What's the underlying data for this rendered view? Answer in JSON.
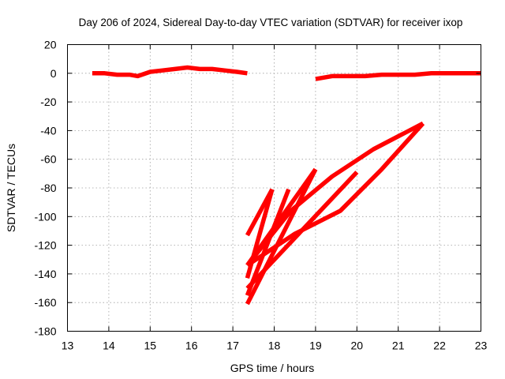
{
  "chart_data": {
    "type": "line",
    "title": "Day 206 of 2024, Sidereal Day-to-day VTEC variation (SDTVAR) for receiver ixop",
    "xlabel": "GPS time / hours",
    "ylabel": "SDTVAR / TECUs",
    "xlim": [
      13,
      23
    ],
    "ylim": [
      -180,
      20
    ],
    "xticks": [
      13,
      14,
      15,
      16,
      17,
      18,
      19,
      20,
      21,
      22,
      23
    ],
    "yticks": [
      -180,
      -160,
      -140,
      -120,
      -100,
      -80,
      -60,
      -40,
      -20,
      0,
      20
    ],
    "grid": true,
    "legend": "none",
    "colors": {
      "series": "#ff0000",
      "axis": "#000000",
      "grid": "#a0a0a0"
    },
    "series": [
      {
        "x": [
          13.6,
          13.9,
          14.2,
          14.5,
          14.7,
          15.0,
          15.3,
          15.6,
          15.9,
          16.2,
          16.5,
          16.8,
          17.1,
          17.35
        ],
        "y": [
          0,
          0,
          -1,
          -1,
          -2,
          1,
          2,
          3,
          4,
          3,
          3,
          2,
          1,
          0
        ]
      },
      {
        "x": [
          19.0,
          19.4,
          19.8,
          20.2,
          20.6,
          21.0,
          21.4,
          21.8,
          22.2,
          22.6,
          23.0
        ],
        "y": [
          -4,
          -2,
          -2,
          -2,
          -1,
          -1,
          -1,
          0,
          0,
          0,
          0
        ]
      },
      {
        "x": [
          17.35,
          17.95
        ],
        "y": [
          -113,
          -81
        ]
      },
      {
        "x": [
          17.35,
          17.95
        ],
        "y": [
          -143,
          -81
        ]
      },
      {
        "x": [
          17.35,
          18.35
        ],
        "y": [
          -155,
          -81
        ]
      },
      {
        "x": [
          17.35,
          19.0
        ],
        "y": [
          -161,
          -67
        ]
      },
      {
        "x": [
          17.35,
          19.0
        ],
        "y": [
          -134,
          -67
        ]
      },
      {
        "x": [
          17.35,
          20.0
        ],
        "y": [
          -150,
          -69
        ]
      },
      {
        "x": [
          17.35,
          18.5,
          19.6,
          20.6,
          21.6
        ],
        "y": [
          -134,
          -112,
          -96,
          -67,
          -35
        ]
      },
      {
        "x": [
          17.35,
          18.4,
          19.4,
          20.4,
          21.6
        ],
        "y": [
          -134,
          -96,
          -72,
          -53,
          -35
        ]
      }
    ]
  }
}
